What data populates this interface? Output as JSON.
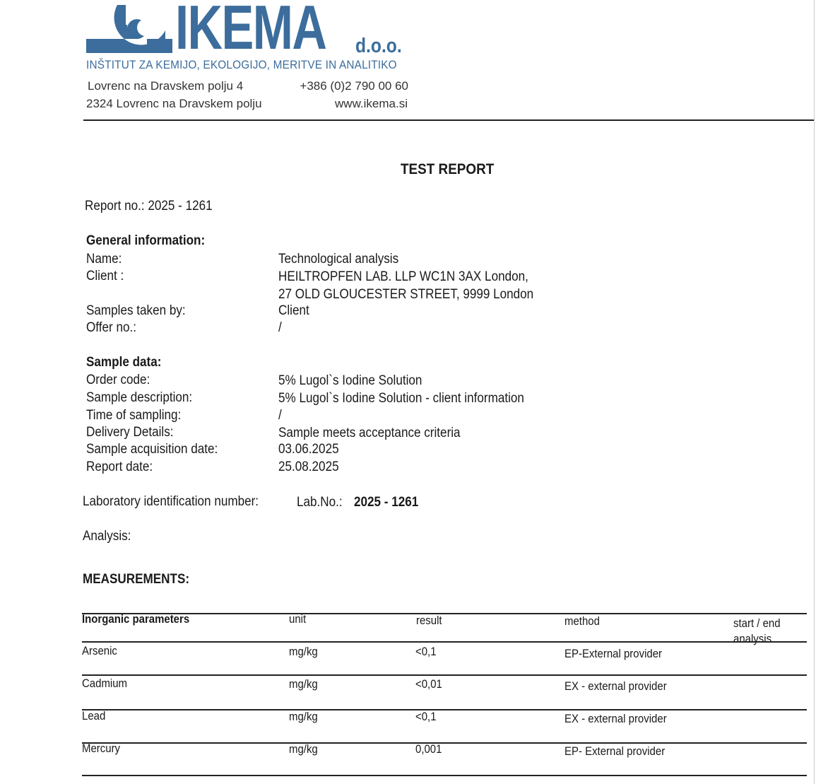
{
  "header": {
    "logo_text": "IKEMA",
    "logo_suffix": "d.o.o.",
    "institute": "INŠTITUT ZA KEMIJO, EKOLOGIJO, MERITVE IN ANALITIKO",
    "address_line1": "Lovrenc na Dravskem polju 4",
    "address_line2": "2324 Lovrenc na Dravskem polju",
    "phone": "+386 (0)2 790 00 60",
    "website": "www.ikema.si",
    "brand_color": "#3c6d9c"
  },
  "title": "TEST REPORT",
  "report_no": "Report no.: 2025 - 1261",
  "general": {
    "heading": "General information:",
    "rows": [
      {
        "label": "Name:",
        "value": "Technological analysis"
      },
      {
        "label": "Client :",
        "value": "HEILTROPFEN LAB. LLP  WC1N 3AX London,"
      },
      {
        "label": "",
        "value": "27 OLD GLOUCESTER STREET, 9999  London"
      },
      {
        "label": "Samples taken by:",
        "value": "Client"
      },
      {
        "label": "Offer no.:",
        "value": "/"
      }
    ]
  },
  "sample": {
    "heading": "Sample data:",
    "rows": [
      {
        "label": "Order code:",
        "value": "5% Lugol`s Iodine Solution"
      },
      {
        "label": "Sample description:",
        "value": "5% Lugol`s Iodine Solution - client information"
      },
      {
        "label": "Time of sampling:",
        "value": "/"
      },
      {
        "label": "Delivery Details:",
        "value": "Sample meets acceptance criteria"
      },
      {
        "label": "Sample acquisition date:",
        "value": "03.06.2025"
      },
      {
        "label": "Report date:",
        "value": "25.08.2025"
      }
    ]
  },
  "lab": {
    "label": "Laboratory identification number:",
    "prefix": "Lab.No.:",
    "number": "2025 - 1261"
  },
  "analysis_label": "Analysis:",
  "measurements": {
    "heading": "MEASUREMENTS:",
    "columns": [
      "Inorganic parameters",
      "unit",
      "result",
      "method",
      "start / end",
      "analysis"
    ],
    "rows": [
      {
        "param": "Arsenic",
        "unit": "mg/kg",
        "result": "<0,1",
        "method": "EP-External provider"
      },
      {
        "param": "Cadmium",
        "unit": "mg/kg",
        "result": "<0,01",
        "method": "EX - external provider"
      },
      {
        "param": "Lead",
        "unit": "mg/kg",
        "result": "<0,1",
        "method": "EX - external provider"
      },
      {
        "param": "Mercury",
        "unit": "mg/kg",
        "result": "0,001",
        "method": "EP-  External provider"
      }
    ]
  }
}
